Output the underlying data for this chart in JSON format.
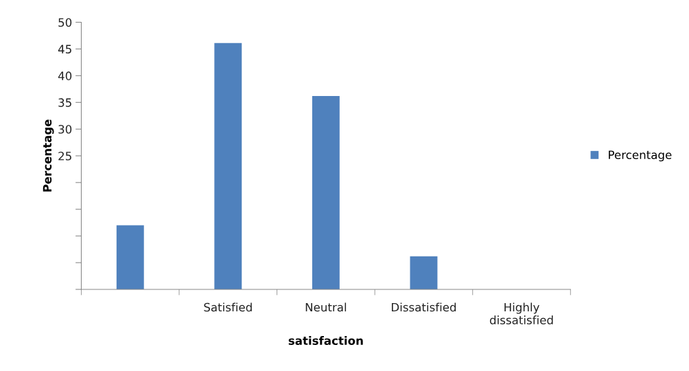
{
  "chart_data": {
    "type": "bar",
    "xlabel": "satisfaction",
    "ylabel": "Percentage",
    "categories": [
      null,
      "Satisfied",
      "Neutral",
      "Dissatisfied",
      "Highly\ndissatisfied"
    ],
    "series": [
      {
        "name": "Percentage",
        "color": "#4f81bd",
        "values": [
          12.0,
          46.1,
          36.2,
          6.2,
          0
        ]
      }
    ],
    "ylim": [
      0,
      50
    ],
    "yticks": [
      {
        "value": 0,
        "label": null
      },
      {
        "value": 5,
        "label": null
      },
      {
        "value": 10,
        "label": null
      },
      {
        "value": 15,
        "label": null
      },
      {
        "value": 20,
        "label": null
      },
      25,
      30,
      35,
      40,
      45,
      50
    ],
    "grid": false,
    "legend": "right"
  }
}
